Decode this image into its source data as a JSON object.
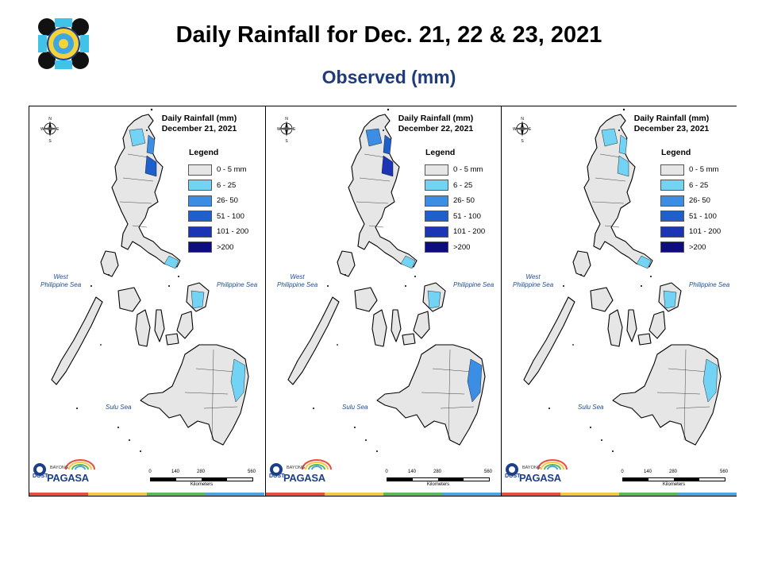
{
  "header": {
    "title": "Daily Rainfall for Dec. 21, 22 & 23, 2021",
    "subtitle": "Observed (mm)",
    "title_color": "#000000",
    "subtitle_color": "#1f3c7a"
  },
  "legend": {
    "title": "Legend",
    "items": [
      {
        "label": "0 - 5 mm",
        "color": "#e6e6e6"
      },
      {
        "label": "6 - 25",
        "color": "#73d3f5"
      },
      {
        "label": "26- 50",
        "color": "#3b8ee3"
      },
      {
        "label": "51 - 100",
        "color": "#1f5fcc"
      },
      {
        "label": "101 - 200",
        "color": "#1b35b5"
      },
      {
        "label": ">200",
        "color": "#0d0d80"
      }
    ]
  },
  "seas": {
    "west": "West\nPhilippine Sea",
    "east": "Philippine Sea",
    "sulu": "Sulu Sea"
  },
  "compass": {
    "n": "N",
    "s": "S",
    "e": "E",
    "w": "W"
  },
  "scale": {
    "ticks": [
      "0",
      "140",
      "280",
      "560"
    ],
    "unit": "Kilometers"
  },
  "branding": {
    "dost": "DOST",
    "tagline": "BAYONG",
    "name": "PAGASA"
  },
  "stripe_colors": [
    "#e84e40",
    "#f2c744",
    "#5db85a",
    "#4fa3e0"
  ],
  "panels": [
    {
      "title_line1": "Daily Rainfall (mm)",
      "title_line2": "December 21, 2021",
      "rain_zones": [
        "#73d3f5",
        "#3b8ee3",
        "#1f5fcc",
        "#73d3f5",
        "#73d3f5",
        "#73d3f5"
      ]
    },
    {
      "title_line1": "Daily Rainfall (mm)",
      "title_line2": "December 22, 2021",
      "rain_zones": [
        "#3b8ee3",
        "#1f5fcc",
        "#1b35b5",
        "#73d3f5",
        "#73d3f5",
        "#3b8ee3"
      ]
    },
    {
      "title_line1": "Daily Rainfall (mm)",
      "title_line2": "December 23, 2021",
      "rain_zones": [
        "#73d3f5",
        "#73d3f5",
        "#73d3f5",
        "#73d3f5",
        "#73d3f5",
        "#73d3f5"
      ]
    }
  ]
}
